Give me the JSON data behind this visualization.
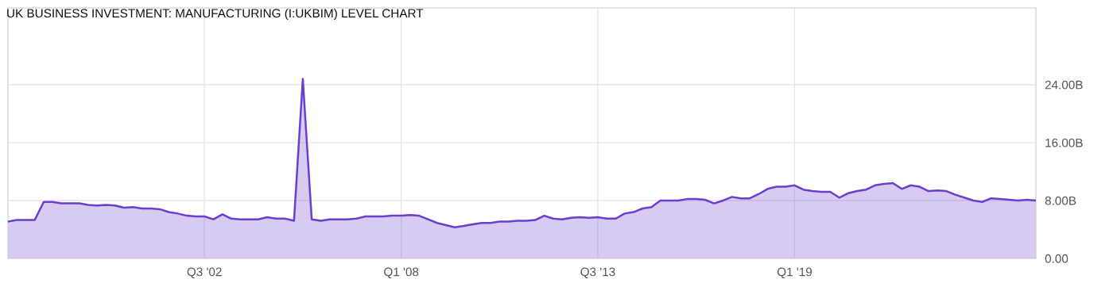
{
  "chart_data": {
    "type": "area",
    "title": "UK BUSINESS INVESTMENT: MANUFACTURING (I:UKBIM) LEVEL CHART",
    "x": [
      "1997-01",
      "1997-04",
      "1997-07",
      "1997-10",
      "1998-01",
      "1998-04",
      "1998-07",
      "1998-10",
      "1999-01",
      "1999-04",
      "1999-07",
      "1999-10",
      "2000-01",
      "2000-04",
      "2000-07",
      "2000-10",
      "2001-01",
      "2001-04",
      "2001-07",
      "2001-10",
      "2002-01",
      "2002-04",
      "2002-07",
      "2002-10",
      "2003-01",
      "2003-04",
      "2003-07",
      "2003-10",
      "2004-01",
      "2004-04",
      "2004-07",
      "2004-10",
      "2005-01",
      "2005-04",
      "2005-07",
      "2005-10",
      "2006-01",
      "2006-04",
      "2006-07",
      "2006-10",
      "2007-01",
      "2007-04",
      "2007-07",
      "2007-10",
      "2008-01",
      "2008-04",
      "2008-07",
      "2008-10",
      "2009-01",
      "2009-04",
      "2009-07",
      "2009-10",
      "2010-01",
      "2010-04",
      "2010-07",
      "2010-10",
      "2011-01",
      "2011-04",
      "2011-07",
      "2011-10",
      "2012-01",
      "2012-04",
      "2012-07",
      "2012-10",
      "2013-01",
      "2013-04",
      "2013-07",
      "2013-10",
      "2014-01",
      "2014-04",
      "2014-07",
      "2014-10",
      "2015-01",
      "2015-04",
      "2015-07",
      "2015-10",
      "2016-01",
      "2016-04",
      "2016-07",
      "2016-10",
      "2017-01",
      "2017-04",
      "2017-07",
      "2017-10",
      "2018-01",
      "2018-04",
      "2018-07",
      "2018-10",
      "2019-01",
      "2019-04",
      "2019-07",
      "2019-10",
      "2020-01",
      "2020-04",
      "2020-07",
      "2020-10",
      "2021-01",
      "2021-04",
      "2021-07",
      "2021-10",
      "2022-01",
      "2022-04",
      "2022-07",
      "2022-10",
      "2023-01",
      "2023-04",
      "2023-07",
      "2023-10",
      "2024-01",
      "2024-04",
      "2024-07",
      "2024-10",
      "2025-01",
      "2025-04",
      "2025-07",
      "2025-10"
    ],
    "series": [
      {
        "color": "#6a3fd0",
        "values": [
          5.1,
          5.3,
          5.3,
          5.3,
          7.8,
          7.8,
          7.6,
          7.6,
          7.6,
          7.4,
          7.3,
          7.4,
          7.3,
          7.0,
          7.1,
          6.9,
          6.9,
          6.8,
          6.4,
          6.2,
          5.9,
          5.8,
          5.8,
          5.4,
          6.1,
          5.5,
          5.4,
          5.4,
          5.4,
          5.7,
          5.5,
          5.5,
          5.2,
          24.8,
          5.4,
          5.2,
          5.4,
          5.4,
          5.4,
          5.5,
          5.8,
          5.8,
          5.8,
          5.9,
          5.9,
          6.0,
          5.9,
          5.4,
          4.9,
          4.6,
          4.3,
          4.5,
          4.7,
          4.9,
          4.9,
          5.1,
          5.1,
          5.2,
          5.2,
          5.3,
          5.9,
          5.5,
          5.4,
          5.6,
          5.7,
          5.6,
          5.7,
          5.5,
          5.5,
          6.2,
          6.4,
          6.9,
          7.1,
          8.0,
          8.0,
          8.0,
          8.2,
          8.2,
          8.1,
          7.6,
          8.0,
          8.5,
          8.3,
          8.3,
          8.9,
          9.6,
          9.9,
          9.9,
          10.1,
          9.5,
          9.3,
          9.2,
          9.2,
          8.4,
          9.0,
          9.3,
          9.5,
          10.1,
          10.3,
          10.4,
          9.6,
          10.1,
          9.9,
          9.3,
          9.4,
          9.3,
          8.8,
          8.4,
          8.0,
          7.8,
          8.3,
          8.2,
          8.1,
          8.0,
          8.1,
          8.0
        ]
      }
    ],
    "xlim": [
      "1997-01",
      "2025-10"
    ],
    "xticks": [
      {
        "value": "2002-07",
        "label": "Q3 '02"
      },
      {
        "value": "2008-01",
        "label": "Q1 '08"
      },
      {
        "value": "2013-07",
        "label": "Q3 '13"
      },
      {
        "value": "2019-01",
        "label": "Q1 '19"
      }
    ],
    "ylim": [
      0,
      34.6
    ],
    "yticks": [
      {
        "value": 0,
        "label": "0.00"
      },
      {
        "value": 8,
        "label": "8.00B"
      },
      {
        "value": 16,
        "label": "16.00B"
      },
      {
        "value": 24,
        "label": "24.00B"
      }
    ],
    "grid": true
  }
}
